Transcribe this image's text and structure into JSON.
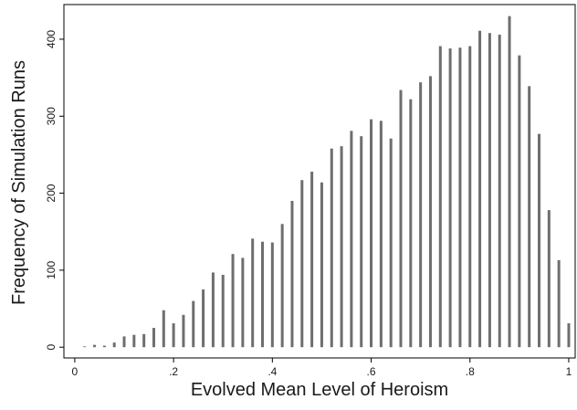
{
  "chart_data": {
    "type": "bar",
    "x_label": "Evolved Mean Level of Heroism",
    "y_label": "Frequency of Simulation Runs",
    "x": [
      0.02,
      0.04,
      0.06,
      0.08,
      0.1,
      0.12,
      0.14,
      0.16,
      0.18,
      0.2,
      0.22,
      0.24,
      0.26,
      0.28,
      0.3,
      0.32,
      0.34,
      0.36,
      0.38,
      0.4,
      0.42,
      0.44,
      0.46,
      0.48,
      0.5,
      0.52,
      0.54,
      0.56,
      0.58,
      0.6,
      0.62,
      0.64,
      0.66,
      0.68,
      0.7,
      0.72,
      0.74,
      0.76,
      0.78,
      0.8,
      0.82,
      0.84,
      0.86,
      0.88,
      0.9,
      0.92,
      0.94,
      0.96,
      0.98,
      1.0
    ],
    "values": [
      1,
      3,
      2,
      6,
      14,
      16,
      17,
      25,
      48,
      31,
      42,
      60,
      75,
      97,
      94,
      121,
      116,
      141,
      137,
      136,
      160,
      190,
      217,
      228,
      214,
      258,
      261,
      281,
      274,
      296,
      294,
      271,
      334,
      322,
      344,
      352,
      391,
      388,
      389,
      391,
      411,
      408,
      406,
      430,
      379,
      339,
      277,
      178,
      113,
      31
    ],
    "color": "#6e6e6e",
    "xlim": [
      -0.022,
      1.013
    ],
    "ylim": [
      -14,
      445
    ],
    "xticks": [
      0,
      {
        "value": 0.2,
        "label": ".2"
      },
      {
        "value": 0.4,
        "label": ".4"
      },
      {
        "value": 0.6,
        "label": ".6"
      },
      {
        "value": 0.8,
        "label": ".8"
      },
      1
    ],
    "yticks": [
      0,
      100,
      200,
      300,
      400
    ],
    "grid": false
  }
}
